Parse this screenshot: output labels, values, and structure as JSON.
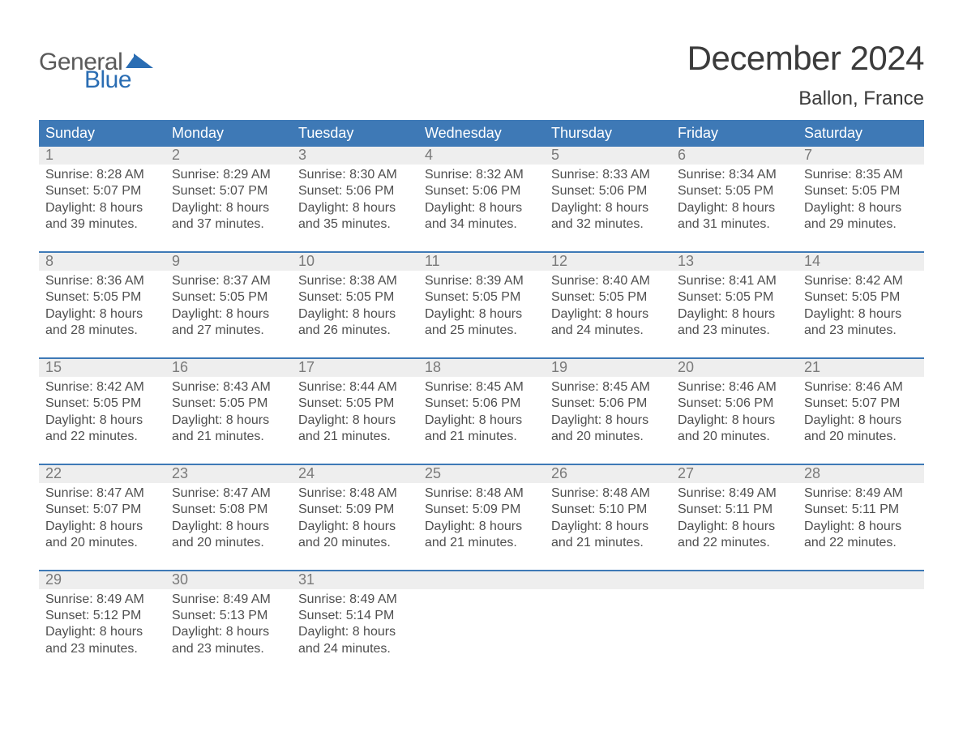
{
  "logo": {
    "text1": "General",
    "text2": "Blue",
    "shape_color": "#2a6db3",
    "text1_color": "#5a5a5a"
  },
  "title": "December 2024",
  "location": "Ballon, France",
  "title_color": "#3b3b3b",
  "header_bg": "#3e79b6",
  "header_text_color": "#ffffff",
  "daynum_bg": "#eeeeee",
  "daynum_color": "#7a7a7a",
  "body_text_color": "#4f4f4f",
  "border_color": "#3e79b6",
  "day_headers": [
    "Sunday",
    "Monday",
    "Tuesday",
    "Wednesday",
    "Thursday",
    "Friday",
    "Saturday"
  ],
  "weeks": [
    [
      {
        "n": "1",
        "sunrise": "8:28 AM",
        "sunset": "5:07 PM",
        "dl": "8 hours and 39 minutes."
      },
      {
        "n": "2",
        "sunrise": "8:29 AM",
        "sunset": "5:07 PM",
        "dl": "8 hours and 37 minutes."
      },
      {
        "n": "3",
        "sunrise": "8:30 AM",
        "sunset": "5:06 PM",
        "dl": "8 hours and 35 minutes."
      },
      {
        "n": "4",
        "sunrise": "8:32 AM",
        "sunset": "5:06 PM",
        "dl": "8 hours and 34 minutes."
      },
      {
        "n": "5",
        "sunrise": "8:33 AM",
        "sunset": "5:06 PM",
        "dl": "8 hours and 32 minutes."
      },
      {
        "n": "6",
        "sunrise": "8:34 AM",
        "sunset": "5:05 PM",
        "dl": "8 hours and 31 minutes."
      },
      {
        "n": "7",
        "sunrise": "8:35 AM",
        "sunset": "5:05 PM",
        "dl": "8 hours and 29 minutes."
      }
    ],
    [
      {
        "n": "8",
        "sunrise": "8:36 AM",
        "sunset": "5:05 PM",
        "dl": "8 hours and 28 minutes."
      },
      {
        "n": "9",
        "sunrise": "8:37 AM",
        "sunset": "5:05 PM",
        "dl": "8 hours and 27 minutes."
      },
      {
        "n": "10",
        "sunrise": "8:38 AM",
        "sunset": "5:05 PM",
        "dl": "8 hours and 26 minutes."
      },
      {
        "n": "11",
        "sunrise": "8:39 AM",
        "sunset": "5:05 PM",
        "dl": "8 hours and 25 minutes."
      },
      {
        "n": "12",
        "sunrise": "8:40 AM",
        "sunset": "5:05 PM",
        "dl": "8 hours and 24 minutes."
      },
      {
        "n": "13",
        "sunrise": "8:41 AM",
        "sunset": "5:05 PM",
        "dl": "8 hours and 23 minutes."
      },
      {
        "n": "14",
        "sunrise": "8:42 AM",
        "sunset": "5:05 PM",
        "dl": "8 hours and 23 minutes."
      }
    ],
    [
      {
        "n": "15",
        "sunrise": "8:42 AM",
        "sunset": "5:05 PM",
        "dl": "8 hours and 22 minutes."
      },
      {
        "n": "16",
        "sunrise": "8:43 AM",
        "sunset": "5:05 PM",
        "dl": "8 hours and 21 minutes."
      },
      {
        "n": "17",
        "sunrise": "8:44 AM",
        "sunset": "5:05 PM",
        "dl": "8 hours and 21 minutes."
      },
      {
        "n": "18",
        "sunrise": "8:45 AM",
        "sunset": "5:06 PM",
        "dl": "8 hours and 21 minutes."
      },
      {
        "n": "19",
        "sunrise": "8:45 AM",
        "sunset": "5:06 PM",
        "dl": "8 hours and 20 minutes."
      },
      {
        "n": "20",
        "sunrise": "8:46 AM",
        "sunset": "5:06 PM",
        "dl": "8 hours and 20 minutes."
      },
      {
        "n": "21",
        "sunrise": "8:46 AM",
        "sunset": "5:07 PM",
        "dl": "8 hours and 20 minutes."
      }
    ],
    [
      {
        "n": "22",
        "sunrise": "8:47 AM",
        "sunset": "5:07 PM",
        "dl": "8 hours and 20 minutes."
      },
      {
        "n": "23",
        "sunrise": "8:47 AM",
        "sunset": "5:08 PM",
        "dl": "8 hours and 20 minutes."
      },
      {
        "n": "24",
        "sunrise": "8:48 AM",
        "sunset": "5:09 PM",
        "dl": "8 hours and 20 minutes."
      },
      {
        "n": "25",
        "sunrise": "8:48 AM",
        "sunset": "5:09 PM",
        "dl": "8 hours and 21 minutes."
      },
      {
        "n": "26",
        "sunrise": "8:48 AM",
        "sunset": "5:10 PM",
        "dl": "8 hours and 21 minutes."
      },
      {
        "n": "27",
        "sunrise": "8:49 AM",
        "sunset": "5:11 PM",
        "dl": "8 hours and 22 minutes."
      },
      {
        "n": "28",
        "sunrise": "8:49 AM",
        "sunset": "5:11 PM",
        "dl": "8 hours and 22 minutes."
      }
    ],
    [
      {
        "n": "29",
        "sunrise": "8:49 AM",
        "sunset": "5:12 PM",
        "dl": "8 hours and 23 minutes."
      },
      {
        "n": "30",
        "sunrise": "8:49 AM",
        "sunset": "5:13 PM",
        "dl": "8 hours and 23 minutes."
      },
      {
        "n": "31",
        "sunrise": "8:49 AM",
        "sunset": "5:14 PM",
        "dl": "8 hours and 24 minutes."
      },
      null,
      null,
      null,
      null
    ]
  ],
  "labels": {
    "sunrise": "Sunrise: ",
    "sunset": "Sunset: ",
    "daylight": "Daylight: "
  }
}
